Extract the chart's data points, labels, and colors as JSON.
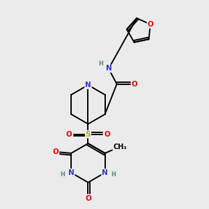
{
  "bg_color": "#ebebeb",
  "atom_colors": {
    "C": "#000000",
    "N": "#3333cc",
    "O": "#ee0000",
    "S": "#bbaa00",
    "H": "#558888"
  },
  "bond_color": "#000000",
  "bond_lw": 1.4,
  "font_size": 7.5
}
